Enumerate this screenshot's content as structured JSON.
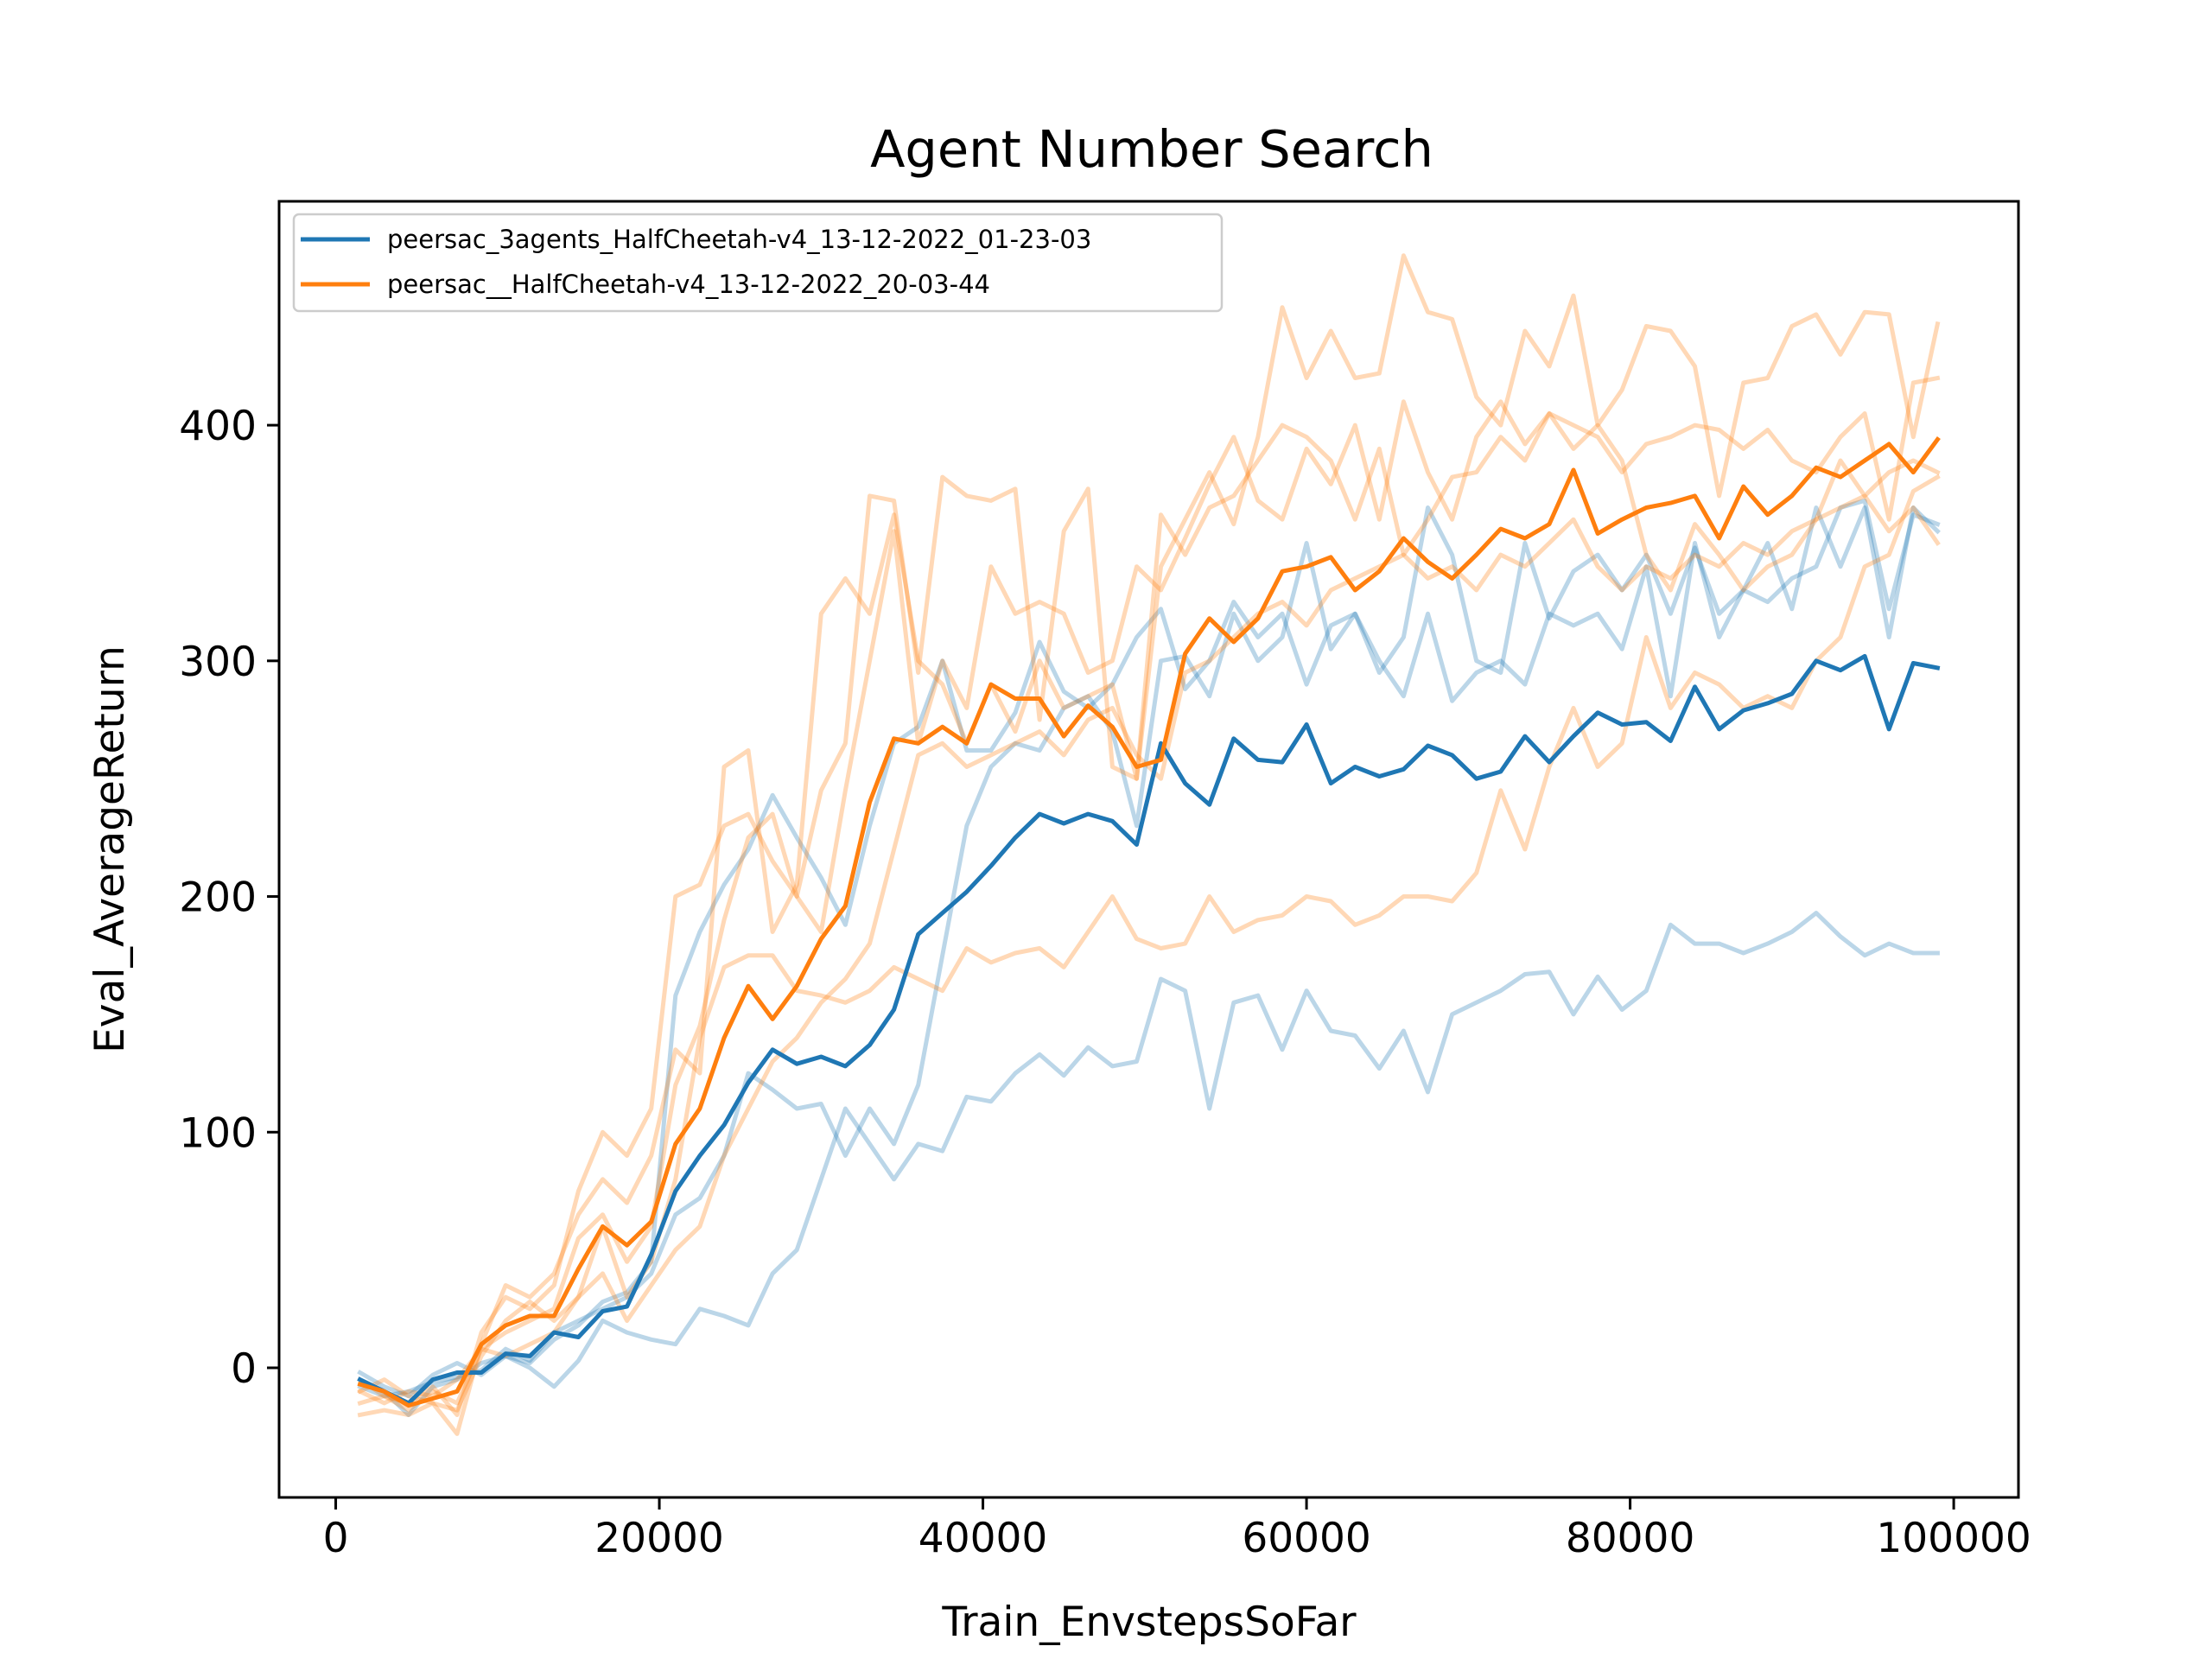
{
  "chart_data": {
    "type": "line",
    "title": "Agent Number Search",
    "xlabel": "Train_EnvstepsSoFar",
    "ylabel": "Eval_AverageReturn",
    "xlim": [
      -3500,
      104000
    ],
    "ylim": [
      -55,
      495
    ],
    "xticks": [
      0,
      20000,
      40000,
      60000,
      80000,
      100000
    ],
    "xtick_labels": [
      "0",
      "20000",
      "40000",
      "60000",
      "80000",
      "100000"
    ],
    "yticks": [
      0,
      100,
      200,
      300,
      400
    ],
    "ytick_labels": [
      "0",
      "100",
      "200",
      "300",
      "400"
    ],
    "grid": false,
    "legend_position": "upper-left",
    "legend": [
      {
        "label": "peersac_3agents_HalfCheetah-v4_13-12-2022_01-23-03",
        "color": "#1f77b4"
      },
      {
        "label": "peersac__HalfCheetah-v4_13-12-2022_20-03-44",
        "color": "#ff7f0e"
      }
    ],
    "x": [
      1500,
      3000,
      4500,
      6000,
      7500,
      9000,
      10500,
      12000,
      13500,
      15000,
      16500,
      18000,
      19500,
      21000,
      22500,
      24000,
      25500,
      27000,
      28500,
      30000,
      31500,
      33000,
      34500,
      36000,
      37500,
      39000,
      40500,
      42000,
      43500,
      45000,
      46500,
      48000,
      49500,
      51000,
      52500,
      54000,
      55500,
      57000,
      58500,
      60000,
      61500,
      63000,
      64500,
      66000,
      67500,
      69000,
      70500,
      72000,
      73500,
      75000,
      76500,
      78000,
      79500,
      81000,
      82500,
      84000,
      85500,
      87000,
      88500,
      90000,
      91500,
      93000,
      94500,
      96000,
      97500,
      99000
    ],
    "series": [
      {
        "color": "#1f77b4",
        "role": "mean",
        "values": [
          -5,
          -10,
          -15,
          -5,
          -2,
          -2,
          6,
          5,
          15,
          13,
          24,
          26,
          48,
          75,
          90,
          103,
          121,
          135,
          129,
          132,
          128,
          137,
          152,
          184,
          193,
          202,
          213,
          225,
          235,
          231,
          235,
          232,
          222,
          265,
          248,
          239,
          267,
          258,
          257,
          273,
          248,
          255,
          251,
          254,
          264,
          260,
          250,
          253,
          268,
          257,
          268,
          278,
          273,
          274,
          266,
          289,
          271,
          279,
          282,
          286,
          300,
          296,
          302,
          271,
          299,
          297
        ]
      },
      {
        "color": "#1f77b4",
        "role": "run",
        "values": [
          -2,
          -8,
          -12,
          -3,
          2,
          -3,
          5,
          2,
          12,
          18,
          28,
          32,
          45,
          158,
          185,
          205,
          220,
          243,
          225,
          208,
          188,
          230,
          265,
          272,
          300,
          262,
          262,
          278,
          308,
          287,
          280,
          290,
          310,
          322,
          288,
          300,
          325,
          310,
          320,
          290,
          315,
          320,
          295,
          310,
          365,
          345,
          300,
          295,
          350,
          318,
          338,
          345,
          330,
          345,
          320,
          348,
          320,
          330,
          325,
          335,
          340,
          365,
          368,
          322,
          362,
          358
        ]
      },
      {
        "color": "#1f77b4",
        "role": "run",
        "values": [
          -8,
          -12,
          -10,
          -6,
          -4,
          -1,
          8,
          3,
          15,
          20,
          25,
          30,
          40,
          65,
          72,
          90,
          125,
          118,
          110,
          112,
          90,
          110,
          95,
          120,
          175,
          230,
          255,
          265,
          262,
          280,
          285,
          270,
          230,
          300,
          302,
          285,
          320,
          300,
          310,
          350,
          305,
          320,
          300,
          285,
          320,
          283,
          295,
          300,
          290,
          320,
          315,
          320,
          305,
          340,
          285,
          350,
          310,
          330,
          350,
          322,
          365,
          340,
          365,
          310,
          365,
          355
        ]
      },
      {
        "color": "#1f77b4",
        "role": "run",
        "values": [
          -5,
          -10,
          -20,
          -8,
          -5,
          2,
          5,
          0,
          -8,
          3,
          20,
          15,
          12,
          10,
          25,
          22,
          18,
          40,
          50,
          80,
          110,
          95,
          80,
          95,
          92,
          115,
          113,
          125,
          133,
          124,
          136,
          128,
          130,
          165,
          160,
          110,
          155,
          158,
          135,
          160,
          143,
          141,
          127,
          143,
          117,
          150,
          155,
          160,
          167,
          168,
          150,
          166,
          152,
          160,
          188,
          180,
          180,
          176,
          180,
          185,
          193,
          183,
          175,
          180,
          176,
          176
        ]
      },
      {
        "color": "#ff7f0e",
        "role": "mean",
        "values": [
          -7,
          -10,
          -16,
          -13,
          -10,
          10,
          18,
          22,
          22,
          42,
          60,
          52,
          62,
          95,
          110,
          140,
          162,
          148,
          162,
          182,
          196,
          240,
          267,
          265,
          272,
          265,
          290,
          284,
          284,
          268,
          281,
          272,
          255,
          258,
          303,
          318,
          308,
          318,
          338,
          340,
          344,
          330,
          338,
          352,
          342,
          335,
          345,
          356,
          352,
          358,
          381,
          354,
          360,
          365,
          367,
          370,
          352,
          374,
          362,
          370,
          382,
          378,
          385,
          392,
          380,
          394
        ]
      },
      {
        "color": "#ff7f0e",
        "role": "run",
        "values": [
          -5,
          -12,
          -15,
          -8,
          -20,
          15,
          30,
          25,
          35,
          75,
          100,
          90,
          110,
          200,
          205,
          230,
          235,
          215,
          200,
          245,
          265,
          370,
          368,
          295,
          378,
          370,
          368,
          373,
          275,
          355,
          373,
          255,
          250,
          340,
          360,
          380,
          358,
          395,
          450,
          420,
          440,
          420,
          422,
          472,
          448,
          445,
          412,
          400,
          440,
          425,
          455,
          400,
          415,
          442,
          440,
          425,
          370,
          418,
          420,
          442,
          447,
          430,
          448,
          447,
          395,
          443
        ]
      },
      {
        "color": "#ff7f0e",
        "role": "run",
        "values": [
          -15,
          -12,
          -18,
          -10,
          -15,
          8,
          15,
          20,
          25,
          55,
          65,
          45,
          60,
          120,
          145,
          190,
          225,
          235,
          200,
          185,
          245,
          300,
          355,
          265,
          300,
          280,
          340,
          320,
          325,
          320,
          295,
          300,
          340,
          330,
          352,
          375,
          395,
          368,
          360,
          390,
          375,
          400,
          360,
          410,
          380,
          360,
          395,
          410,
          392,
          405,
          400,
          395,
          380,
          392,
          395,
          400,
          398,
          390,
          398,
          385,
          380,
          395,
          405,
          360,
          418,
          420
        ]
      },
      {
        "color": "#ff7f0e",
        "role": "run",
        "values": [
          -20,
          -18,
          -20,
          -15,
          -28,
          10,
          35,
          30,
          40,
          65,
          80,
          70,
          90,
          135,
          125,
          255,
          262,
          185,
          205,
          320,
          335,
          320,
          362,
          300,
          290,
          265,
          290,
          270,
          300,
          280,
          285,
          290,
          250,
          362,
          345,
          365,
          370,
          385,
          400,
          395,
          385,
          360,
          390,
          345,
          360,
          378,
          380,
          395,
          385,
          405,
          390,
          400,
          385,
          345,
          330,
          358,
          345,
          330,
          340,
          345,
          360,
          385,
          370,
          380,
          385,
          380
        ]
      },
      {
        "color": "#ff7f0e",
        "role": "run",
        "values": [
          -10,
          -5,
          -12,
          -15,
          -18,
          5,
          20,
          28,
          20,
          30,
          60,
          30,
          45,
          80,
          140,
          170,
          175,
          175,
          160,
          158,
          155,
          160,
          170,
          165,
          160,
          178,
          172,
          176,
          178,
          170,
          185,
          200,
          182,
          178,
          180,
          200,
          185,
          190,
          192,
          200,
          198,
          188,
          192,
          200,
          200,
          198,
          210,
          245,
          220,
          255,
          280,
          255,
          265,
          310,
          280,
          295,
          290,
          280,
          285,
          280,
          300,
          310,
          340,
          345,
          372,
          378
        ]
      },
      {
        "color": "#ff7f0e",
        "role": "run",
        "values": [
          -10,
          -15,
          -10,
          -12,
          -5,
          8,
          5,
          10,
          15,
          30,
          40,
          20,
          35,
          50,
          60,
          90,
          110,
          130,
          140,
          155,
          165,
          180,
          220,
          260,
          265,
          255,
          260,
          265,
          270,
          260,
          275,
          280,
          260,
          250,
          295,
          300,
          310,
          320,
          325,
          315,
          330,
          335,
          340,
          345,
          335,
          340,
          330,
          345,
          340,
          350,
          360,
          340,
          330,
          340,
          335,
          345,
          340,
          350,
          345,
          355,
          360,
          365,
          370,
          355,
          365,
          350
        ]
      }
    ]
  }
}
